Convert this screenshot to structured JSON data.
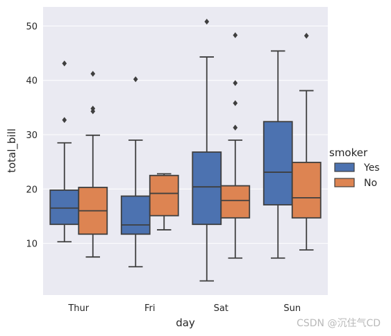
{
  "chart_data": {
    "type": "box",
    "xlabel": "day",
    "ylabel": "total_bill",
    "ylim": [
      0.5,
      53.5
    ],
    "yticks": [
      10,
      20,
      30,
      40,
      50
    ],
    "categories": [
      "Thur",
      "Fri",
      "Sat",
      "Sun"
    ],
    "grid": true,
    "legend": {
      "title": "smoker",
      "placement": "right"
    },
    "series": [
      {
        "name": "Yes",
        "color": "#4c72b0",
        "boxes": [
          {
            "whislo": 10.3,
            "q1": 13.5,
            "med": 16.5,
            "q3": 19.8,
            "whishi": 28.5,
            "fliers": [
              32.7,
              43.1
            ]
          },
          {
            "whislo": 5.7,
            "q1": 11.7,
            "med": 13.4,
            "q3": 18.7,
            "whishi": 29.0,
            "fliers": [
              40.2
            ]
          },
          {
            "whislo": 3.1,
            "q1": 13.5,
            "med": 20.4,
            "q3": 26.8,
            "whishi": 44.3,
            "fliers": [
              50.8
            ]
          },
          {
            "whislo": 7.3,
            "q1": 17.1,
            "med": 23.1,
            "q3": 32.4,
            "whishi": 45.4,
            "fliers": []
          }
        ]
      },
      {
        "name": "No",
        "color": "#dd8452",
        "boxes": [
          {
            "whislo": 7.5,
            "q1": 11.7,
            "med": 16.0,
            "q3": 20.3,
            "whishi": 29.9,
            "fliers": [
              34.3,
              34.8,
              41.2
            ]
          },
          {
            "whislo": 12.5,
            "q1": 15.1,
            "med": 19.2,
            "q3": 22.5,
            "whishi": 22.8,
            "fliers": []
          },
          {
            "whislo": 7.3,
            "q1": 14.7,
            "med": 17.9,
            "q3": 20.6,
            "whishi": 29.0,
            "fliers": [
              31.3,
              35.8,
              39.5,
              48.3
            ]
          },
          {
            "whislo": 8.8,
            "q1": 14.7,
            "med": 18.4,
            "q3": 24.9,
            "whishi": 38.1,
            "fliers": [
              48.2
            ]
          }
        ]
      }
    ]
  },
  "watermark": "CSDN @沉住气CD"
}
